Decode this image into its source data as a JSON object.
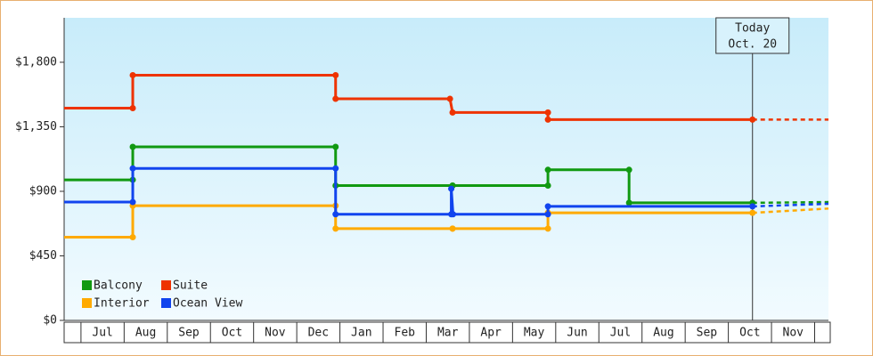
{
  "chart_data": {
    "type": "line",
    "xlim": [
      0.61,
      18.32
    ],
    "xticks": [
      {
        "value": 1.5,
        "label": "Jul"
      },
      {
        "value": 2.5,
        "label": "Aug"
      },
      {
        "value": 3.5,
        "label": "Sep"
      },
      {
        "value": 4.5,
        "label": "Oct"
      },
      {
        "value": 5.5,
        "label": "Nov"
      },
      {
        "value": 6.5,
        "label": "Dec"
      },
      {
        "value": 7.5,
        "label": "Jan"
      },
      {
        "value": 8.5,
        "label": "Feb"
      },
      {
        "value": 9.5,
        "label": "Mar"
      },
      {
        "value": 10.5,
        "label": "Apr"
      },
      {
        "value": 11.5,
        "label": "May"
      },
      {
        "value": 12.5,
        "label": "Jun"
      },
      {
        "value": 13.5,
        "label": "Jul"
      },
      {
        "value": 14.5,
        "label": "Aug"
      },
      {
        "value": 15.5,
        "label": "Sep"
      },
      {
        "value": 16.5,
        "label": "Oct"
      },
      {
        "value": 17.5,
        "label": "Nov"
      }
    ],
    "ylim": [
      0,
      2110
    ],
    "yticks": [
      {
        "value": 0,
        "label": "$0"
      },
      {
        "value": 450,
        "label": "$450"
      },
      {
        "value": 900,
        "label": "$900"
      },
      {
        "value": 1350,
        "label": "$1,350"
      },
      {
        "value": 1800,
        "label": "$1,800"
      }
    ],
    "today": {
      "x": 16.56,
      "lines": [
        "Today",
        "Oct. 20"
      ]
    },
    "series": [
      {
        "name": "Balcony",
        "color": "#119911",
        "x": [
          0.61,
          2.2,
          2.2,
          6.9,
          6.9,
          9.61,
          9.61,
          11.82,
          11.82,
          13.7,
          13.7,
          16.56
        ],
        "values": [
          980,
          980,
          1210,
          1210,
          940,
          940,
          940,
          940,
          1050,
          1050,
          820,
          820
        ],
        "projection": {
          "x": [
            16.56,
            18.32
          ],
          "values": [
            820,
            825
          ]
        }
      },
      {
        "name": "Suite",
        "color": "#ee3300",
        "x": [
          0.61,
          2.2,
          2.2,
          6.9,
          6.9,
          9.55,
          9.61,
          11.82,
          11.82,
          16.56
        ],
        "values": [
          1480,
          1480,
          1710,
          1710,
          1545,
          1545,
          1450,
          1450,
          1400,
          1400
        ],
        "projection": {
          "x": [
            16.56,
            18.32
          ],
          "values": [
            1400,
            1400
          ]
        }
      },
      {
        "name": "Interior",
        "color": "#ffaa00",
        "x": [
          0.61,
          2.2,
          2.2,
          6.9,
          6.9,
          9.61,
          9.61,
          11.82,
          11.82,
          16.56
        ],
        "values": [
          580,
          580,
          800,
          800,
          640,
          640,
          640,
          640,
          750,
          750
        ],
        "projection": {
          "x": [
            16.56,
            18.32
          ],
          "values": [
            750,
            780
          ]
        }
      },
      {
        "name": "Ocean View",
        "color": "#1144ee",
        "x": [
          0.61,
          2.2,
          2.2,
          6.9,
          6.9,
          9.58,
          9.58,
          9.62,
          11.82,
          11.82,
          16.56
        ],
        "values": [
          825,
          825,
          1060,
          1060,
          740,
          740,
          918,
          740,
          740,
          795,
          795
        ],
        "projection": {
          "x": [
            16.56,
            18.32
          ],
          "values": [
            795,
            813
          ]
        }
      }
    ]
  }
}
